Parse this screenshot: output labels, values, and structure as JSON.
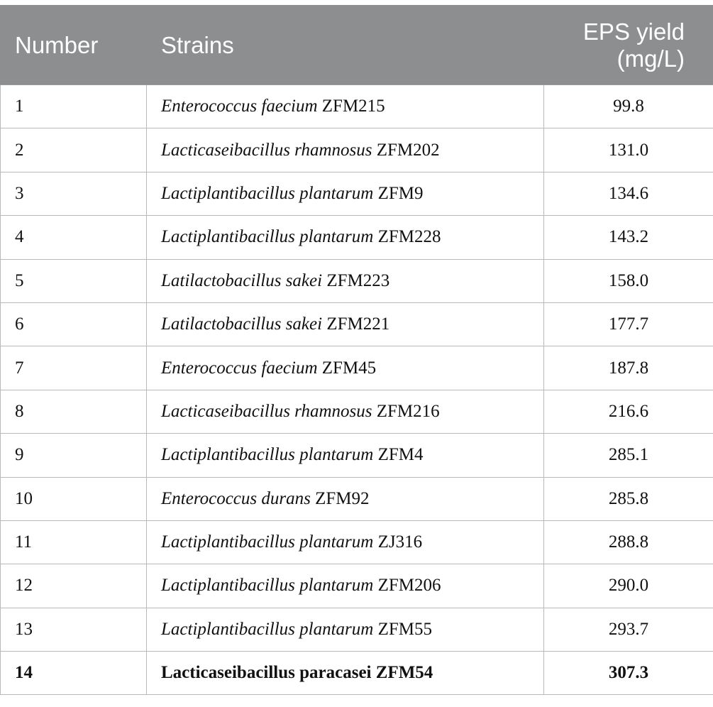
{
  "table": {
    "headers": {
      "number": "Number",
      "strains": "Strains",
      "eps_yield": "EPS yield\n(mg/L)"
    },
    "rows": [
      {
        "number": "1",
        "species": "Enterococcus faecium",
        "strain_id": " ZFM215",
        "yield": "99.8"
      },
      {
        "number": "2",
        "species": "Lacticaseibacillus rhamnosus",
        "strain_id": " ZFM202",
        "yield": "131.0"
      },
      {
        "number": "3",
        "species": "Lactiplantibacillus plantarum",
        "strain_id": " ZFM9",
        "yield": "134.6"
      },
      {
        "number": "4",
        "species": "Lactiplantibacillus plantarum",
        "strain_id": " ZFM228",
        "yield": "143.2"
      },
      {
        "number": "5",
        "species": "Latilactobacillus sakei",
        "strain_id": " ZFM223",
        "yield": "158.0"
      },
      {
        "number": "6",
        "species": "Latilactobacillus sakei",
        "strain_id": " ZFM221",
        "yield": "177.7"
      },
      {
        "number": "7",
        "species": "Enterococcus faecium",
        "strain_id": " ZFM45",
        "yield": "187.8"
      },
      {
        "number": "8",
        "species": "Lacticaseibacillus rhamnosus",
        "strain_id": " ZFM216",
        "yield": "216.6"
      },
      {
        "number": "9",
        "species": "Lactiplantibacillus plantarum",
        "strain_id": " ZFM4",
        "yield": "285.1"
      },
      {
        "number": "10",
        "species": "Enterococcus durans",
        "strain_id": " ZFM92",
        "yield": "285.8"
      },
      {
        "number": "11",
        "species": "Lactiplantibacillus plantarum",
        "strain_id": " ZJ316",
        "yield": "288.8"
      },
      {
        "number": "12",
        "species": "Lactiplantibacillus plantarum",
        "strain_id": " ZFM206",
        "yield": "290.0"
      },
      {
        "number": "13",
        "species": "Lactiplantibacillus plantarum",
        "strain_id": " ZFM55",
        "yield": "293.7"
      },
      {
        "number": "14",
        "species": "Lacticaseibacillus paracasei",
        "strain_id": " ZFM54",
        "yield": "307.3"
      }
    ]
  },
  "colors": {
    "header_background": "#8d8e8f",
    "header_text": "#ffffff",
    "border": "#b9b9b9"
  }
}
